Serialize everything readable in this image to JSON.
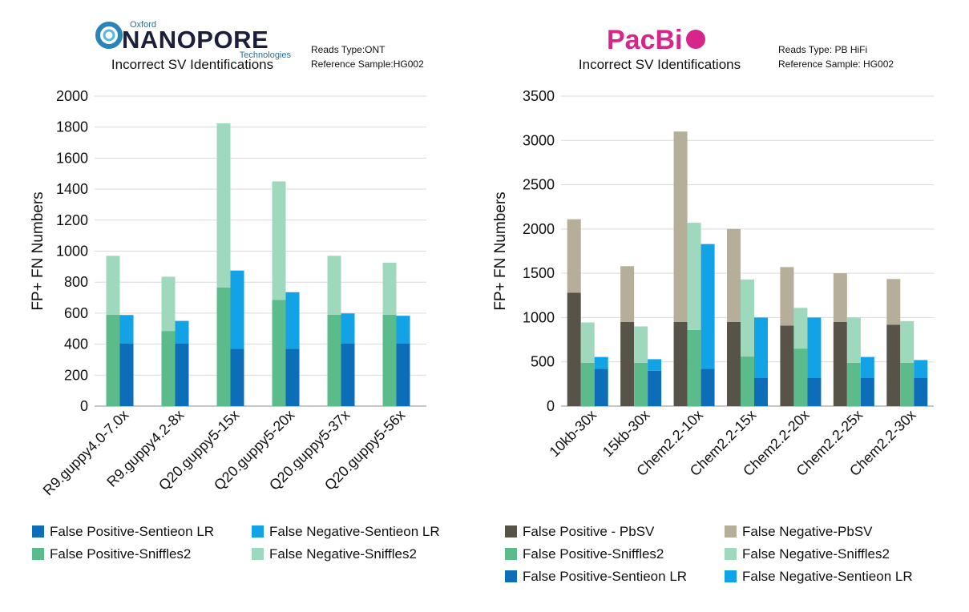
{
  "ont_panel": {
    "logo": {
      "small_top": "Oxford",
      "main": "NANOPORE",
      "small_bottom": "Technologies"
    },
    "meta": {
      "reads_type": "Reads Type:ONT",
      "reference": "Reference Sample:HG002"
    }
  },
  "pacbio_panel": {
    "logo": {
      "main": "PacBi"
    },
    "meta": {
      "reads_type": "Reads Type: PB HiFi",
      "reference": "Reference Sample: HG002"
    }
  },
  "chart_data": [
    {
      "type": "bar",
      "stacked_groups": true,
      "title": "Incorrect SV Identifications",
      "ylabel": "FP+ FN Numbers",
      "xlabel": "",
      "ylim": [
        0,
        2000
      ],
      "yticks": [
        0,
        200,
        400,
        600,
        800,
        1000,
        1200,
        1400,
        1600,
        1800,
        2000
      ],
      "grid": true,
      "legend_position": "bottom",
      "categories": [
        "R9.guppy4.0-7.0x",
        "R9.guppy4.2-8x",
        "Q20.guppy5-15x",
        "Q20.guppy5-20x",
        "Q20.guppy5-37x",
        "Q20.guppy5-56x"
      ],
      "stacks": [
        {
          "tool": "Sniffles2",
          "false_positive": {
            "name": "False Positive-Sniffles2",
            "color": "#5bbb8a",
            "values": [
              590,
              485,
              765,
              685,
              590,
              590
            ]
          },
          "false_negative": {
            "name": "False Negative-Sniffles2",
            "color": "#9fd9bd",
            "values": [
              380,
              350,
              1060,
              765,
              380,
              335
            ]
          }
        },
        {
          "tool": "Sentieon LR",
          "false_positive": {
            "name": "False Positive-Sentieon LR",
            "color": "#0c6eb8",
            "values": [
              405,
              405,
              370,
              370,
              405,
              405
            ]
          },
          "false_negative": {
            "name": "False Negative-Sentieon LR",
            "color": "#12a2e6",
            "values": [
              183,
              145,
              505,
              365,
              193,
              178
            ]
          }
        }
      ],
      "legend": [
        {
          "label": "False Positive-Sentieon LR",
          "color": "#0c6eb8"
        },
        {
          "label": "False Negative-Sentieon LR",
          "color": "#12a2e6"
        },
        {
          "label": "False Positive-Sniffles2",
          "color": "#5bbb8a"
        },
        {
          "label": "False Negative-Sniffles2",
          "color": "#9fd9bd"
        }
      ]
    },
    {
      "type": "bar",
      "stacked_groups": true,
      "title": "Incorrect SV Identifications",
      "ylabel": "FP+ FN Numbers",
      "xlabel": "",
      "ylim": [
        0,
        3500
      ],
      "yticks": [
        0,
        500,
        1000,
        1500,
        2000,
        2500,
        3000,
        3500
      ],
      "grid": true,
      "legend_position": "bottom",
      "categories": [
        "10kb-30x",
        "15kb-30x",
        "Chem2.2-10x",
        "Chem2.2-15x",
        "Chem2.2-20x",
        "Chem2.2-25x",
        "Chem2.2-30x"
      ],
      "stacks": [
        {
          "tool": "PbSV",
          "false_positive": {
            "name": "False Positive - PbSV",
            "color": "#575349",
            "values": [
              1280,
              950,
              950,
              950,
              910,
              950,
              920
            ]
          },
          "false_negative": {
            "name": "False Negative-PbSV",
            "color": "#b5ae99",
            "values": [
              830,
              630,
              2150,
              1050,
              660,
              550,
              515
            ]
          }
        },
        {
          "tool": "Sniffles2",
          "false_positive": {
            "name": "False Positive-Sniffles2",
            "color": "#5bbb8a",
            "values": [
              490,
              490,
              860,
              560,
              650,
              490,
              490
            ]
          },
          "false_negative": {
            "name": "False Negative-Sniffles2",
            "color": "#9fd9bd",
            "values": [
              455,
              410,
              1210,
              870,
              460,
              510,
              470
            ]
          }
        },
        {
          "tool": "Sentieon LR",
          "false_positive": {
            "name": "False Positive-Sentieon LR",
            "color": "#0c6eb8",
            "values": [
              420,
              400,
              420,
              320,
              320,
              320,
              320
            ]
          },
          "false_negative": {
            "name": "False Negative-Sentieon LR",
            "color": "#12a2e6",
            "values": [
              135,
              130,
              1410,
              680,
              680,
              235,
              200
            ]
          }
        }
      ],
      "legend": [
        {
          "label": "False Positive - PbSV",
          "color": "#575349"
        },
        {
          "label": "False Negative-PbSV",
          "color": "#b5ae99"
        },
        {
          "label": "False Positive-Sniffles2",
          "color": "#5bbb8a"
        },
        {
          "label": "False Negative-Sniffles2",
          "color": "#9fd9bd"
        },
        {
          "label": "False Positive-Sentieon LR",
          "color": "#0c6eb8"
        },
        {
          "label": "False Negative-Sentieon LR",
          "color": "#12a2e6"
        }
      ]
    }
  ]
}
